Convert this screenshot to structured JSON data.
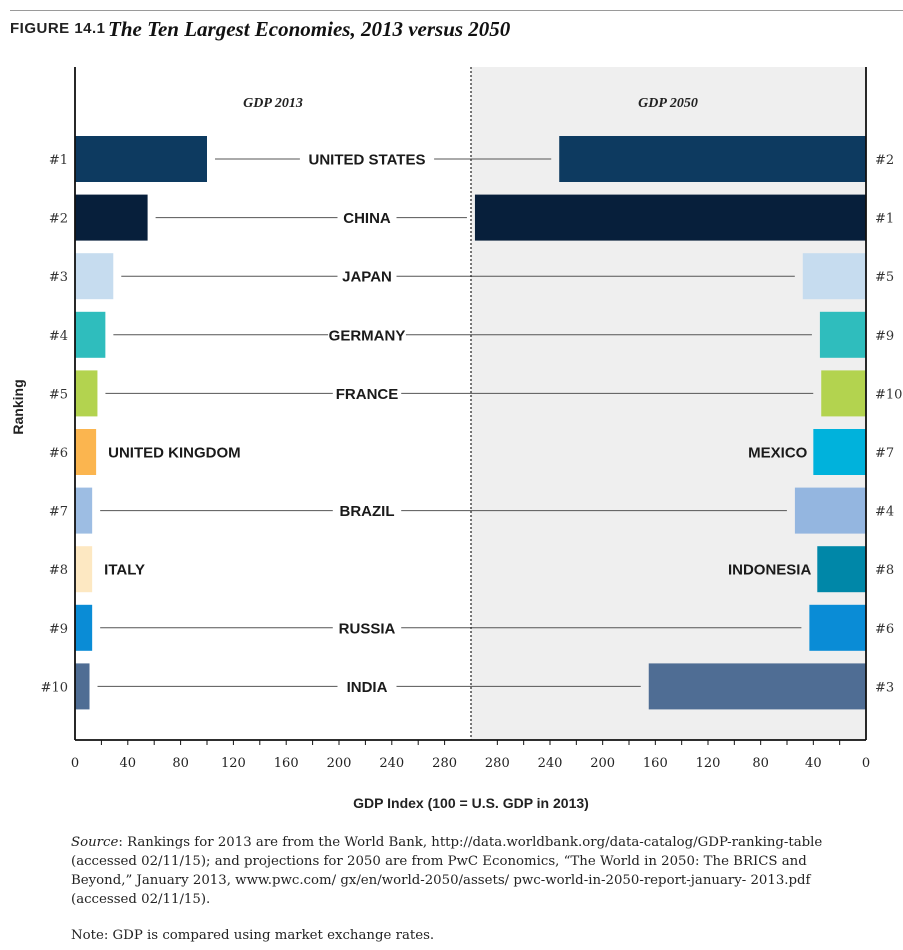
{
  "figure": {
    "label": "FIGURE 14.1",
    "title": "The Ten Largest Economies, 2013 versus 2050"
  },
  "chart_data": {
    "type": "bar",
    "layout": "mirrored horizontal bars",
    "panels": [
      "GDP 2013",
      "GDP 2050"
    ],
    "ylabel": "Ranking",
    "xlabel": "GDP Index (100 = U.S. GDP in 2013)",
    "left_ticks": [
      "0",
      "40",
      "80",
      "120",
      "160",
      "200",
      "240",
      "280"
    ],
    "right_ticks": [
      "280",
      "240",
      "200",
      "160",
      "120",
      "80",
      "40",
      "0"
    ],
    "xlim": [
      0,
      300
    ],
    "categories": [
      "UNITED STATES",
      "CHINA",
      "JAPAN",
      "GERMANY",
      "FRANCE",
      "UNITED KINGDOM",
      "BRAZIL",
      "ITALY",
      "RUSSIA",
      "INDIA"
    ],
    "rank_2013": [
      "#1",
      "#2",
      "#3",
      "#4",
      "#5",
      "#6",
      "#7",
      "#8",
      "#9",
      "#10"
    ],
    "rank_2050": [
      "#2",
      "#1",
      "#5",
      "#9",
      "#10",
      "#7",
      "#4",
      "#8",
      "#6",
      "#3"
    ],
    "right_labels": [
      "UNITED STATES",
      "CHINA",
      "JAPAN",
      "GERMANY",
      "FRANCE",
      "MEXICO",
      "BRAZIL",
      "INDONESIA",
      "RUSSIA",
      "INDIA"
    ],
    "series": [
      {
        "name": "GDP 2013",
        "values": [
          100,
          55,
          29,
          23,
          17,
          16,
          13,
          13,
          13,
          11
        ]
      },
      {
        "name": "GDP 2050",
        "values": [
          233,
          297,
          48,
          35,
          34,
          40,
          54,
          37,
          43,
          165
        ]
      }
    ],
    "colors_2013": [
      "#0d3a60",
      "#071f3b",
      "#c6dcef",
      "#2fbdbd",
      "#b3d34f",
      "#fbb54f",
      "#9dbde3",
      "#fde8c2",
      "#0a8cd6",
      "#4f6d94"
    ],
    "colors_2050": [
      "#0d3a60",
      "#071f3b",
      "#c6dcef",
      "#2fbdbd",
      "#b3d34f",
      "#00b2dc",
      "#94b6e0",
      "#0087a8",
      "#0a8cd6",
      "#4f6d94"
    ],
    "shaded_panel": "GDP 2050",
    "shaded_color": "#efefef"
  },
  "source": {
    "prefix": "Source",
    "text": ": Rankings for 2013 are from the World Bank, http://data.worldbank.org/data-catalog/GDP-ranking-table (accessed 02/11/15); and projections for 2050 are from PwC Economics, “The World in 2050: The BRICS and Beyond,” January 2013, www.pwc.com/ gx/en/world-2050/assets/ pwc-world-in-2050-report-january- 2013.pdf (accessed 02/11/15)."
  },
  "note": "Note: GDP is compared using market exchange rates."
}
